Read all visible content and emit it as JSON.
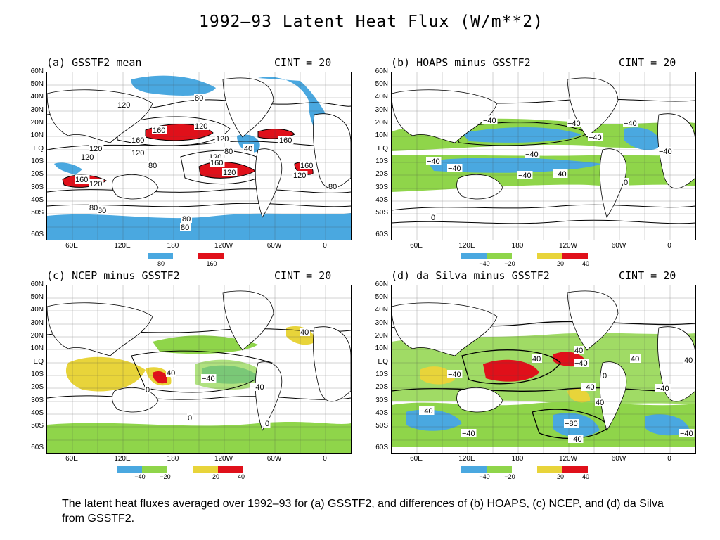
{
  "title": "1992–93 Latent Heat Flux (W/m**2)",
  "lat_labels": [
    "60N",
    "50N",
    "40N",
    "30N",
    "20N",
    "10N",
    "EQ",
    "10S",
    "20S",
    "30S",
    "40S",
    "50S",
    "60S"
  ],
  "lon_labels": [
    "60E",
    "120E",
    "180",
    "120W",
    "60W",
    "0"
  ],
  "colors": {
    "blue": "#4aa8e0",
    "green": "#8fd54a",
    "yellow": "#e8d43a",
    "red": "#e0101a",
    "contour": "#000000"
  },
  "panels": [
    {
      "id": "a",
      "title": "(a) GSSTF2 mean",
      "cint": "CINT = 20",
      "legend": {
        "ticks": [
          "80",
          "160"
        ],
        "colors": [
          "#4aa8e0",
          "#e0101a"
        ]
      },
      "labels": [
        "80",
        "80",
        "120",
        "160",
        "120",
        "160",
        "120",
        "120",
        "80",
        "40",
        "120",
        "160",
        "120",
        "80",
        "120",
        "160",
        "160",
        "120",
        "120",
        "80",
        "160",
        "80",
        "120",
        "80",
        "80"
      ]
    },
    {
      "id": "b",
      "title": "(b) HOAPS minus GSSTF2",
      "cint": "CINT = 20",
      "legend": {
        "ticks": [
          "−40",
          "−20",
          "20",
          "40"
        ],
        "colors": [
          "#4aa8e0",
          "#8fd54a",
          "#e8d43a",
          "#e0101a"
        ]
      },
      "labels": [
        "−40",
        "−40",
        "−40",
        "−40",
        "−40",
        "−40",
        "−40",
        "−40",
        "−40",
        "−40",
        "0",
        "0"
      ]
    },
    {
      "id": "c",
      "title": "(c) NCEP minus GSSTF2",
      "cint": "CINT = 20",
      "legend": {
        "ticks": [
          "−40",
          "−20",
          "20",
          "40"
        ],
        "colors": [
          "#4aa8e0",
          "#8fd54a",
          "#e8d43a",
          "#e0101a"
        ]
      },
      "labels": [
        "40",
        "40",
        "−40",
        "−40",
        "0",
        "0",
        "0"
      ]
    },
    {
      "id": "d",
      "title": "(d) da Silva minus GSSTF2",
      "cint": "CINT = 20",
      "legend": {
        "ticks": [
          "−40",
          "−20",
          "20",
          "40"
        ],
        "colors": [
          "#4aa8e0",
          "#8fd54a",
          "#e8d43a",
          "#e0101a"
        ]
      },
      "labels": [
        "−40",
        "−40",
        "40",
        "40",
        "40",
        "40",
        "−40",
        "−40",
        "−40",
        "−80",
        "−40",
        "−40",
        "40",
        "−40",
        "0"
      ]
    }
  ],
  "caption": "The latent heat fluxes averaged over 1992–93 for (a) GSSTF2, and differences of (b) HOAPS, (c) NCEP, and (d) da Silva from GSSTF2."
}
